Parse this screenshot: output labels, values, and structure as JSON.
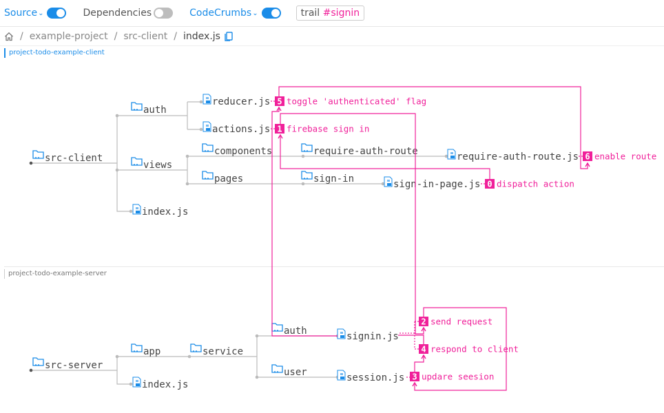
{
  "toolbar": {
    "source_label": "Source",
    "source_on": true,
    "dependencies_label": "Dependencies",
    "dependencies_on": false,
    "codecrumbs_label": "CodeCrumbs",
    "codecrumbs_on": true,
    "trail_prefix": "trail",
    "trail_name": "#signin"
  },
  "breadcrumb": [
    "example-project",
    "src-client",
    "index.js"
  ],
  "projects": {
    "client": "project-todo-example-client",
    "server": "project-todo-example-server"
  },
  "colors": {
    "accent": "#1a8ce8",
    "crumb": "#f0209a",
    "line": "#bbbbbb"
  },
  "tree": {
    "client": {
      "root": "src-client",
      "auth": "auth",
      "reducer": "reducer.js",
      "actions": "actions.js",
      "views": "views",
      "components": "components",
      "require_auth_route": "require-auth-route",
      "require_auth_route_js": "require-auth-route.js",
      "pages": "pages",
      "sign_in": "sign-in",
      "sign_in_page": "sign-in-page.js",
      "index": "index.js"
    },
    "server": {
      "root": "src-server",
      "app": "app",
      "service": "service",
      "auth": "auth",
      "signin": "signin.js",
      "user": "user",
      "session": "session.js",
      "index": "index.js"
    }
  },
  "crumbs": [
    {
      "num": "0",
      "label": "dispatch action"
    },
    {
      "num": "1",
      "label": "firebase sign in"
    },
    {
      "num": "2",
      "label": "send request"
    },
    {
      "num": "3",
      "label": "updare seesion"
    },
    {
      "num": "4",
      "label": "respond to client"
    },
    {
      "num": "5",
      "label": "toggle 'authenticated' flag"
    },
    {
      "num": "6",
      "label": "enable route"
    }
  ]
}
